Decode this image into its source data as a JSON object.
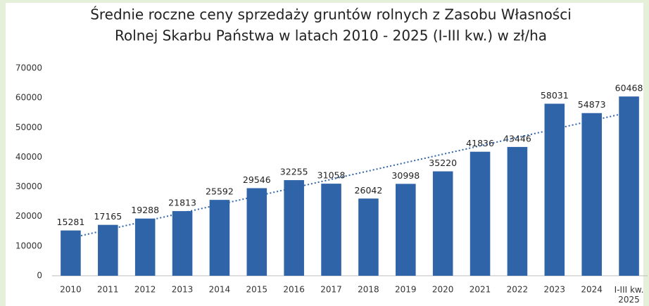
{
  "chart_data": {
    "type": "bar",
    "title": [
      "Średnie roczne ceny sprzedaży gruntów rolnych z Zasobu Własności",
      "Rolnej Skarbu Państwa w latach 2010 - 2025 (I-III kw.) w zł/ha"
    ],
    "categories": [
      "2010",
      "2011",
      "2012",
      "2013",
      "2014",
      "2015",
      "2016",
      "2017",
      "2018",
      "2019",
      "2020",
      "2021",
      "2022",
      "2023",
      "2024",
      "I-III kw. 2025"
    ],
    "values": [
      15281,
      17165,
      19288,
      21813,
      25592,
      29546,
      32255,
      31058,
      26042,
      30998,
      35220,
      41836,
      43446,
      58031,
      54873,
      60468
    ],
    "color": "#2f64a9",
    "ylim": [
      0,
      70000
    ],
    "yticks": [
      0,
      10000,
      20000,
      30000,
      40000,
      50000,
      60000,
      70000
    ],
    "grid": false,
    "trendline": true
  }
}
